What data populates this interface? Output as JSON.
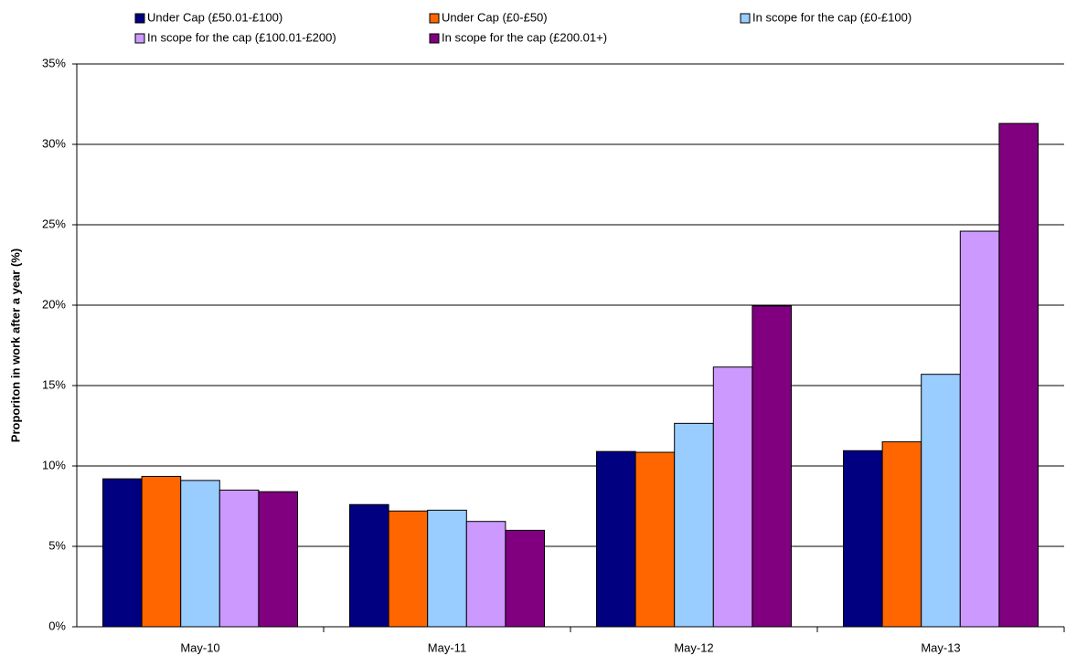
{
  "chart_data": {
    "type": "bar",
    "y_label": "Proporiton in work after a year (%)",
    "categories": [
      "May-10",
      "May-11",
      "May-12",
      "May-13"
    ],
    "series": [
      {
        "name": "Under Cap (£50.01-£100)",
        "color": "#000080",
        "values": [
          9.2,
          7.6,
          10.9,
          10.95
        ]
      },
      {
        "name": "Under Cap (£0-£50)",
        "color": "#FF6600",
        "values": [
          9.35,
          7.2,
          10.85,
          11.5
        ]
      },
      {
        "name": "In scope for the cap (£0-£100)",
        "color": "#99CCFF",
        "values": [
          9.1,
          7.25,
          12.65,
          15.7
        ]
      },
      {
        "name": "In scope for the cap (£100.01-£200)",
        "color": "#CC99FF",
        "values": [
          8.5,
          6.55,
          16.15,
          24.6
        ]
      },
      {
        "name": "In scope for the cap (£200.01+)",
        "color": "#800080",
        "values": [
          8.4,
          6.0,
          19.95,
          31.3
        ]
      }
    ],
    "ylim": [
      0,
      35
    ],
    "yticks": [
      {
        "value": 0,
        "label": "0%"
      },
      {
        "value": 5,
        "label": "5%"
      },
      {
        "value": 10,
        "label": "10%"
      },
      {
        "value": 15,
        "label": "15%"
      },
      {
        "value": 20,
        "label": "20%"
      },
      {
        "value": 25,
        "label": "25%"
      },
      {
        "value": 30,
        "label": "30%"
      },
      {
        "value": 35,
        "label": "35%"
      }
    ],
    "grid": true
  }
}
